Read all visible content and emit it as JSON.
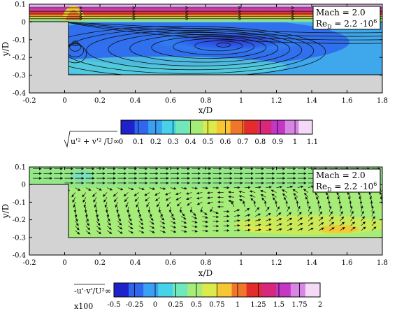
{
  "chart_data": [
    {
      "type": "heatmap",
      "xlabel": "x/D",
      "ylabel": "y/D",
      "x_ticks": [
        "-0.2",
        "0",
        "0.2",
        "0.4",
        "0.6",
        "0.8",
        "1",
        "1.2",
        "1.4",
        "1.6",
        "1.8"
      ],
      "y_ticks": [
        "0.1",
        "0",
        "-0.1",
        "-0.2",
        "-0.3",
        "-0.4"
      ],
      "xlim": [
        -0.2,
        1.8
      ],
      "ylim": [
        -0.4,
        0.1
      ],
      "annotation": {
        "line1": "Mach = 2.0",
        "line2_prefix": "Re",
        "line2_sub": "D",
        "line2_value": " = 2.2 ·10",
        "line2_sup": "6"
      },
      "overlay": "streamlines",
      "step": {
        "edge_x": 0,
        "floor_y": -0.3,
        "wall_top_y": 0
      },
      "recirculation_center": {
        "x": 0.9,
        "y": -0.13
      },
      "colorbar": {
        "label_text": "u'² + v'² /U∞",
        "ticks": [
          "0",
          "0.1",
          "0.2",
          "0.3",
          "0.4",
          "0.5",
          "0.6",
          "0.7",
          "0.8",
          "0.9",
          "1",
          "1.1"
        ],
        "range": [
          0,
          1.1
        ],
        "colors": [
          "#1e22c8",
          "#2e66ee",
          "#3aa0f2",
          "#46d2e8",
          "#70e8bc",
          "#a6ec78",
          "#dcea4c",
          "#f6c634",
          "#f0762a",
          "#e42c2c",
          "#d8287c",
          "#c436c4",
          "#d886e4",
          "#f4daf6"
        ]
      }
    },
    {
      "type": "heatmap",
      "xlabel": "x/D",
      "ylabel": "y/D",
      "x_ticks": [
        "-0.2",
        "0",
        "0.2",
        "0.4",
        "0.6",
        "0.8",
        "1",
        "1.2",
        "1.4",
        "1.6",
        "1.8"
      ],
      "y_ticks": [
        "0.1",
        "0",
        "-0.1",
        "-0.2",
        "-0.3",
        "-0.4"
      ],
      "xlim": [
        -0.2,
        1.8
      ],
      "ylim": [
        -0.4,
        0.1
      ],
      "annotation": {
        "line1": "Mach = 2.0",
        "line2_prefix": "Re",
        "line2_sub": "D",
        "line2_value": " = 2.2 ·10",
        "line2_sup": "6"
      },
      "overlay": "velocity vectors",
      "step": {
        "edge_x": 0,
        "floor_y": -0.3,
        "wall_top_y": 0
      },
      "colorbar": {
        "label_text": "-u'·v'/U²∞",
        "label_scale": "x100",
        "ticks": [
          "-0.5",
          "-0.25",
          "0",
          "0.25",
          "0.5",
          "0.75",
          "1",
          "1.25",
          "1.5",
          "1.75",
          "2"
        ],
        "range": [
          -0.5,
          2
        ],
        "colors": [
          "#1e22c8",
          "#2e66ee",
          "#3aa0f2",
          "#46d2e8",
          "#70e8bc",
          "#a6ec78",
          "#dcea4c",
          "#f6c634",
          "#f0762a",
          "#e42c2c",
          "#d8287c",
          "#c436c4",
          "#d886e4",
          "#f4daf6"
        ]
      }
    }
  ]
}
